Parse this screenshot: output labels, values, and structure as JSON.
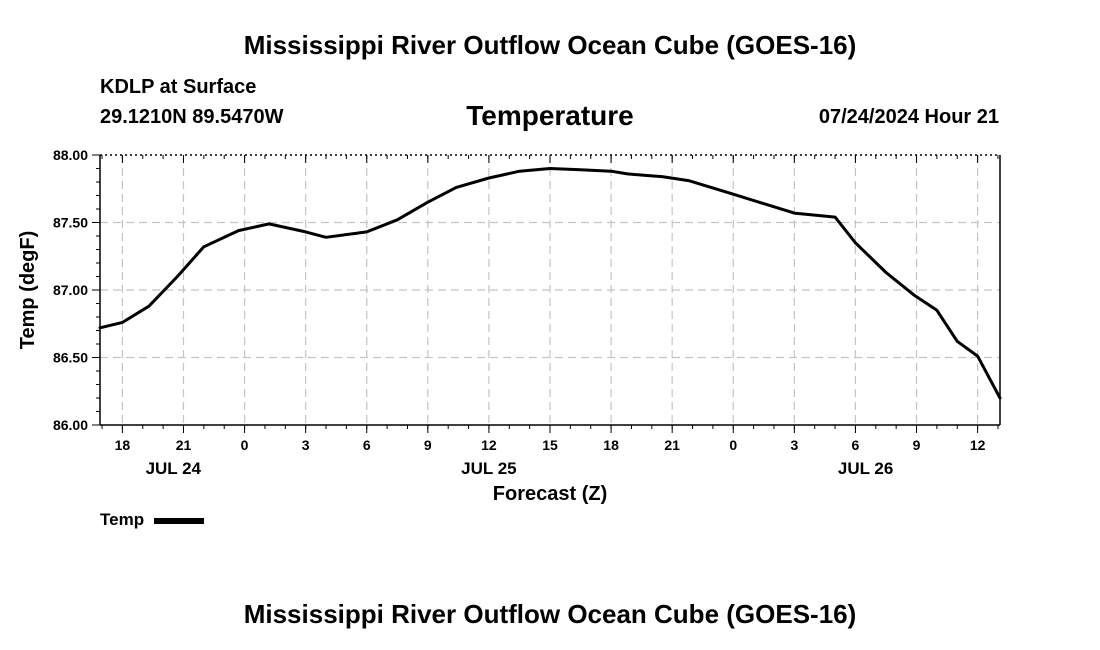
{
  "page": {
    "title": "Mississippi River Outflow Ocean Cube (GOES-16)",
    "footer_title": "Mississippi River Outflow Ocean Cube (GOES-16)",
    "station": "KDLP at Surface",
    "location": "29.1210N  89.5470W",
    "valid_time": "07/24/2024 Hour 21"
  },
  "chart_data": {
    "type": "line",
    "title": "Temperature",
    "xlabel": "Forecast (Z)",
    "ylabel": "Temp (degF)",
    "xlim": [
      -1.1,
      43.1
    ],
    "ylim": [
      86.0,
      88.0
    ],
    "yticks": [
      "86.00",
      "86.50",
      "87.00",
      "87.50",
      "88.00"
    ],
    "xticks": [
      {
        "x": 0,
        "label": "18"
      },
      {
        "x": 3,
        "label": "21"
      },
      {
        "x": 6,
        "label": "0"
      },
      {
        "x": 9,
        "label": "3"
      },
      {
        "x": 12,
        "label": "6"
      },
      {
        "x": 15,
        "label": "9"
      },
      {
        "x": 18,
        "label": "12"
      },
      {
        "x": 21,
        "label": "15"
      },
      {
        "x": 24,
        "label": "18"
      },
      {
        "x": 27,
        "label": "21"
      },
      {
        "x": 30,
        "label": "0"
      },
      {
        "x": 33,
        "label": "3"
      },
      {
        "x": 36,
        "label": "6"
      },
      {
        "x": 39,
        "label": "9"
      },
      {
        "x": 42,
        "label": "12"
      }
    ],
    "date_labels": [
      {
        "x": 2.5,
        "label": "JUL 24"
      },
      {
        "x": 18,
        "label": "JUL 25"
      },
      {
        "x": 36.5,
        "label": "JUL 26"
      }
    ],
    "grid": true,
    "legend": "bottom-left",
    "series": [
      {
        "name": "Temp",
        "color": "#000000",
        "x": [
          -1.1,
          0,
          1.3,
          2.7,
          4,
          5.7,
          7.2,
          9,
          10,
          12,
          13.5,
          15,
          16.4,
          18,
          19.5,
          21,
          22.5,
          24,
          24.8,
          25.6,
          26.5,
          27.8,
          30,
          33,
          35,
          36,
          37.5,
          38.9,
          40,
          41,
          42,
          43.1
        ],
        "y": [
          86.72,
          86.76,
          86.88,
          87.1,
          87.32,
          87.44,
          87.49,
          87.43,
          87.39,
          87.43,
          87.52,
          87.65,
          87.76,
          87.83,
          87.88,
          87.9,
          87.89,
          87.88,
          87.86,
          87.85,
          87.84,
          87.81,
          87.71,
          87.57,
          87.54,
          87.35,
          87.13,
          86.96,
          86.85,
          86.62,
          86.51,
          86.2
        ]
      }
    ]
  }
}
